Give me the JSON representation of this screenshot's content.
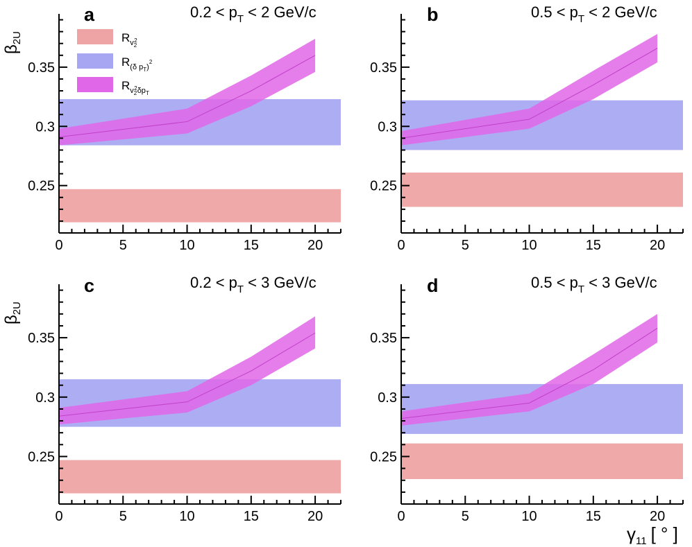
{
  "figure": {
    "y_axis_label": {
      "main": "β",
      "sub": "2U"
    },
    "x_axis_label": {
      "main": "γ",
      "sub": "11",
      "unit": "[ ° ]"
    }
  },
  "legend": {
    "items": [
      {
        "key": "rv2",
        "main": "R",
        "sub": "v",
        "subsub": "2",
        "supsub": "2",
        "color": "#eea4a4"
      },
      {
        "key": "rdpt",
        "main": "R",
        "sub": "(δ p",
        "subsub": "T",
        "sub_close": ")",
        "sup": "2",
        "color": "#a6a6f2"
      },
      {
        "key": "rv2dpt",
        "main": "R",
        "sub": "v",
        "subsub": "2",
        "supsub": "2",
        "sub_rest": "δp",
        "subsub2": "T",
        "color": "#e067e8"
      }
    ]
  },
  "colors": {
    "rv2_band": "#eea4a4",
    "rdpt_band": "#a6a6f2",
    "rv2dpt_band": "#e067e8",
    "rv2dpt_line": "#c040c8"
  },
  "chart_data": [
    {
      "panel": "a",
      "type": "area",
      "range_label": {
        "lo": "0.2 < p",
        "sub": "T",
        "hi": " < 2 GeV/c"
      },
      "xlim": [
        0,
        22
      ],
      "ylim": [
        0.21,
        0.395
      ],
      "xticks": [
        0,
        5,
        10,
        15,
        20
      ],
      "yticks": [
        0.25,
        0.3,
        0.35
      ],
      "yticklabels": [
        "0.25",
        "0.3",
        "0.35"
      ],
      "series": [
        {
          "name": "R_v2^2",
          "kind": "hband",
          "low": 0.219,
          "high": 0.247
        },
        {
          "name": "R_(δpT)^2",
          "kind": "hband",
          "low": 0.284,
          "high": 0.323
        },
        {
          "name": "R_v2^2δpT",
          "kind": "band",
          "x": [
            0,
            10,
            15,
            20
          ],
          "low": [
            0.284,
            0.294,
            0.317,
            0.346
          ],
          "high": [
            0.298,
            0.315,
            0.343,
            0.374
          ],
          "mid": [
            0.291,
            0.304,
            0.33,
            0.36
          ]
        }
      ]
    },
    {
      "panel": "b",
      "type": "area",
      "range_label": {
        "lo": "0.5 < p",
        "sub": "T",
        "hi": " < 2 GeV/c"
      },
      "xlim": [
        0,
        22
      ],
      "ylim": [
        0.21,
        0.395
      ],
      "xticks": [
        0,
        5,
        10,
        15,
        20
      ],
      "yticks": [
        0.25,
        0.3,
        0.35
      ],
      "yticklabels": [
        "0.25",
        "0.3",
        "0.35"
      ],
      "series": [
        {
          "name": "R_v2^2",
          "kind": "hband",
          "low": 0.232,
          "high": 0.261
        },
        {
          "name": "R_(δpT)^2",
          "kind": "hband",
          "low": 0.28,
          "high": 0.322
        },
        {
          "name": "R_v2^2δpT",
          "kind": "band",
          "x": [
            0,
            10,
            15,
            20
          ],
          "low": [
            0.284,
            0.298,
            0.323,
            0.354
          ],
          "high": [
            0.296,
            0.315,
            0.347,
            0.378
          ],
          "mid": [
            0.29,
            0.306,
            0.335,
            0.366
          ]
        }
      ]
    },
    {
      "panel": "c",
      "type": "area",
      "range_label": {
        "lo": "0.2 < p",
        "sub": "T",
        "hi": " < 3 GeV/c"
      },
      "xlim": [
        0,
        22
      ],
      "ylim": [
        0.21,
        0.395
      ],
      "xticks": [
        0,
        5,
        10,
        15,
        20
      ],
      "yticks": [
        0.25,
        0.3,
        0.35
      ],
      "yticklabels": [
        "0.25",
        "0.3",
        "0.35"
      ],
      "series": [
        {
          "name": "R_v2^2",
          "kind": "hband",
          "low": 0.219,
          "high": 0.247
        },
        {
          "name": "R_(δpT)^2",
          "kind": "hband",
          "low": 0.275,
          "high": 0.315
        },
        {
          "name": "R_v2^2δpT",
          "kind": "band",
          "x": [
            0,
            10,
            15,
            20
          ],
          "low": [
            0.277,
            0.287,
            0.31,
            0.341
          ],
          "high": [
            0.291,
            0.305,
            0.334,
            0.368
          ],
          "mid": [
            0.284,
            0.296,
            0.322,
            0.354
          ]
        }
      ]
    },
    {
      "panel": "d",
      "type": "area",
      "range_label": {
        "lo": "0.5 < p",
        "sub": "T",
        "hi": " < 3 GeV/c"
      },
      "xlim": [
        0,
        22
      ],
      "ylim": [
        0.21,
        0.395
      ],
      "xticks": [
        0,
        5,
        10,
        15,
        20
      ],
      "yticks": [
        0.25,
        0.3,
        0.35
      ],
      "yticklabels": [
        "0.25",
        "0.3",
        "0.35"
      ],
      "series": [
        {
          "name": "R_v2^2",
          "kind": "hband",
          "low": 0.231,
          "high": 0.261
        },
        {
          "name": "R_(δpT)^2",
          "kind": "hband",
          "low": 0.269,
          "high": 0.311
        },
        {
          "name": "R_v2^2δpT",
          "kind": "band",
          "x": [
            0,
            10,
            15,
            20
          ],
          "low": [
            0.276,
            0.288,
            0.311,
            0.346
          ],
          "high": [
            0.288,
            0.303,
            0.336,
            0.37
          ],
          "mid": [
            0.282,
            0.295,
            0.323,
            0.358
          ]
        }
      ]
    }
  ]
}
